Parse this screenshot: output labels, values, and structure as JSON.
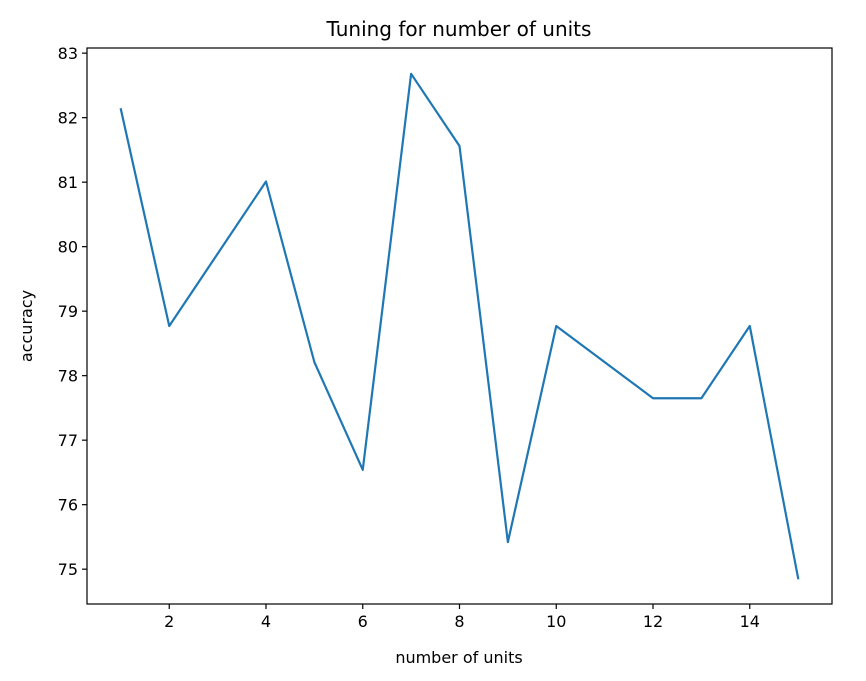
{
  "chart_data": {
    "type": "line",
    "title": "Tuning for number of units",
    "xlabel": "number of units",
    "ylabel": "accuracy",
    "x": [
      1,
      2,
      4,
      5,
      6,
      7,
      8,
      9,
      10,
      12,
      13,
      14,
      15
    ],
    "series": [
      {
        "name": "accuracy",
        "values": [
          82.13,
          78.77,
          81.01,
          78.21,
          76.54,
          82.68,
          81.56,
          75.42,
          78.77,
          77.65,
          77.65,
          78.77,
          74.86
        ],
        "color": "#1f77b4"
      }
    ],
    "xlim": [
      0.3,
      15.7
    ],
    "ylim": [
      74.46,
      83.08
    ],
    "xticks": [
      2,
      4,
      6,
      8,
      10,
      12,
      14
    ],
    "yticks": [
      75,
      76,
      77,
      78,
      79,
      80,
      81,
      82,
      83
    ],
    "grid": false,
    "legend": "none"
  }
}
